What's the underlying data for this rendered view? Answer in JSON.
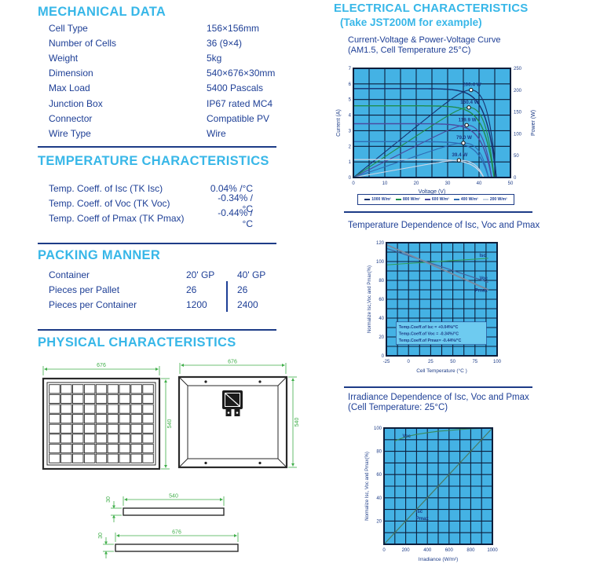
{
  "page": {
    "bg": "#ffffff",
    "accent_cyan": "#38b7e8",
    "navy": "#1d3c87",
    "dim_green": "#3fae49",
    "plot_bg": "#44b2e4"
  },
  "left": {
    "mechanical": {
      "title": "MECHANICAL DATA",
      "rows": [
        {
          "label": "Cell Type",
          "value": "156×156mm"
        },
        {
          "label": "Number of Cells",
          "value": "36 (9×4)"
        },
        {
          "label": "Weight",
          "value": "5kg"
        },
        {
          "label": "Dimension",
          "value": "540×676×30mm"
        },
        {
          "label": "Max Load",
          "value": "5400 Pascals"
        },
        {
          "label": "Junction Box",
          "value": "IP67 rated MC4"
        },
        {
          "label": "Connector",
          "value": "Compatible PV"
        },
        {
          "label": "Wire Type",
          "value": "Wire"
        }
      ]
    },
    "temperature": {
      "title": "TEMPERATURE CHARACTERISTICS",
      "rows": [
        {
          "label": "Temp. Coeff. of Isc (TK Isc)",
          "value": "0.04% /°C"
        },
        {
          "label": "Temp. Coeff. of Voc (TK Voc)",
          "value": "-0.34% /°C"
        },
        {
          "label": "Temp. Coeff of Pmax (TK Pmax)",
          "value": "-0.44% /°C"
        }
      ]
    },
    "packing": {
      "title": "PACKING MANNER",
      "rows": [
        {
          "label": "Container",
          "col1": "20' GP",
          "col2": "40' GP"
        },
        {
          "label": "Pieces per Pallet",
          "col1": "26",
          "col2": "26"
        },
        {
          "label": "Pieces per Container",
          "col1": "1200",
          "col2": "2400"
        }
      ]
    },
    "physical": {
      "title": "PHYSICAL CHARACTERISTICS",
      "front": {
        "width": "676",
        "height": "540"
      },
      "back": {
        "width": "676",
        "height": "540"
      },
      "side_small": {
        "length": "540",
        "thickness": "30"
      },
      "side_large": {
        "length": "676",
        "thickness": "30"
      }
    }
  },
  "right": {
    "title": "ELECTRICAL CHARACTERISTICS",
    "subtitle": "(Take JST200M for example)"
  },
  "chart_data": [
    {
      "type": "line",
      "title": "Current-Voltage & Power-Voltage Curve",
      "subtitle": "(AM1.5, Cell Temperature 25°C)",
      "xlabel": "Voltage (V)",
      "ylabel_left": "Current (A)",
      "ylabel_right": "Power (W)",
      "xlim": [
        0,
        50
      ],
      "ylim_left": [
        0,
        7
      ],
      "ylim_right": [
        0,
        250
      ],
      "xticks": [
        0,
        10,
        20,
        30,
        40,
        50
      ],
      "yticks_left": [
        0,
        1,
        2,
        3,
        4,
        5,
        6,
        7
      ],
      "yticks_right": [
        0,
        50,
        100,
        150,
        200,
        250
      ],
      "grid": {
        "x_step": 5,
        "y_divisions": 7
      },
      "legend_position": "bottom",
      "series": [
        {
          "name": "1000 W/m²",
          "isc": 5.7,
          "voc": 45.5,
          "pmax": 200.4,
          "pmax_label": "200.4 W",
          "color": "#17316f"
        },
        {
          "name": "800 W/m²",
          "isc": 4.6,
          "voc": 44.8,
          "pmax": 160.4,
          "pmax_label": "160.4 W",
          "color": "#1f8d4d"
        },
        {
          "name": "600 W/m²",
          "isc": 3.45,
          "voc": 44.0,
          "pmax": 119.9,
          "pmax_label": "119.9 W",
          "color": "#4b4ba1"
        },
        {
          "name": "400 W/m²",
          "isc": 2.3,
          "voc": 43.0,
          "pmax": 79.0,
          "pmax_label": "79.0 W",
          "color": "#2e6cb5"
        },
        {
          "name": "200 W/m²",
          "isc": 1.15,
          "voc": 41.5,
          "pmax": 39.4,
          "pmax_label": "39.4 W",
          "color": "#c9d5e6"
        }
      ]
    },
    {
      "type": "line",
      "title": "Temperature Dependence of Isc, Voc and Pmax",
      "xlabel": "Cell Temperature (°C )",
      "ylabel": "Normalize Isc,Voc and Pmax(%)",
      "xlim": [
        -25,
        100
      ],
      "ylim": [
        0,
        120
      ],
      "xticks": [
        -25,
        0,
        25,
        50,
        75,
        100
      ],
      "yticks": [
        0,
        20,
        40,
        60,
        80,
        100,
        120
      ],
      "grid": {
        "x_divisions": 10,
        "y_divisions": 12
      },
      "lines": [
        {
          "name": "Isc",
          "color": "#2f9e55",
          "width": 1.0,
          "points": [
            [
              -25,
              96.5
            ],
            [
              0,
              98
            ],
            [
              25,
              99.5
            ],
            [
              50,
              101
            ],
            [
              75,
              102.5
            ],
            [
              90,
              103.5
            ]
          ],
          "label": {
            "text": "Isc",
            "at": [
              80,
              105
            ]
          }
        },
        {
          "name": "Voc",
          "color": "#44639e",
          "width": 1.2,
          "points": [
            [
              -25,
              114
            ],
            [
              90,
              78
            ]
          ],
          "label": {
            "text": "Voc",
            "at": [
              80,
              81
            ]
          }
        },
        {
          "name": "Pmax",
          "color": "#7a8aa0",
          "width": 1.8,
          "points": [
            [
              -25,
              118
            ],
            [
              90,
              70
            ]
          ],
          "label": {
            "text": "Pmax",
            "at": [
              75,
              68
            ]
          }
        }
      ],
      "annotations": [
        "Temp.Coeff.of Isc = +0.04%/°C",
        "Temp.Coeff.of Voc = -0.34%/°C",
        "Temp.Coeff.of Pmax= -0.44%/°C"
      ]
    },
    {
      "type": "line",
      "title": "Irradiance Dependence of Isc, Voc and Pmax",
      "subtitle": "(Cell Temperature: 25°C)",
      "xlabel": "Irradiance (W/m²)",
      "ylabel": "Normalize Isc, Voc and Pmax(%)",
      "xlim": [
        0,
        1000
      ],
      "ylim": [
        0,
        100
      ],
      "xticks": [
        0,
        200,
        400,
        600,
        800,
        1000
      ],
      "yticks": [
        20,
        40,
        60,
        80,
        100
      ],
      "grid": {
        "x_divisions": 10,
        "y_divisions": 10
      },
      "lines": [
        {
          "name": "Voc",
          "color": "#3a8a5a",
          "width": 1.1,
          "points": [
            [
              100,
              89
            ],
            [
              200,
              92.5
            ],
            [
              300,
              94.5
            ],
            [
              400,
              96
            ],
            [
              500,
              97.2
            ],
            [
              600,
              98
            ],
            [
              700,
              98.8
            ],
            [
              800,
              99.3
            ],
            [
              900,
              99.7
            ],
            [
              1000,
              100
            ]
          ],
          "label": {
            "text": "Voc",
            "at": [
              170,
              92
            ]
          }
        },
        {
          "name": "Isc/Pmax",
          "color": "#4a7a60",
          "width": 1.2,
          "points": [
            [
              0,
              0
            ],
            [
              1000,
              100
            ]
          ],
          "labels": [
            {
              "text": "Isc",
              "at": [
                295,
                27
              ]
            },
            {
              "text": "Pmax",
              "at": [
                295,
                21
              ]
            }
          ]
        }
      ]
    }
  ]
}
